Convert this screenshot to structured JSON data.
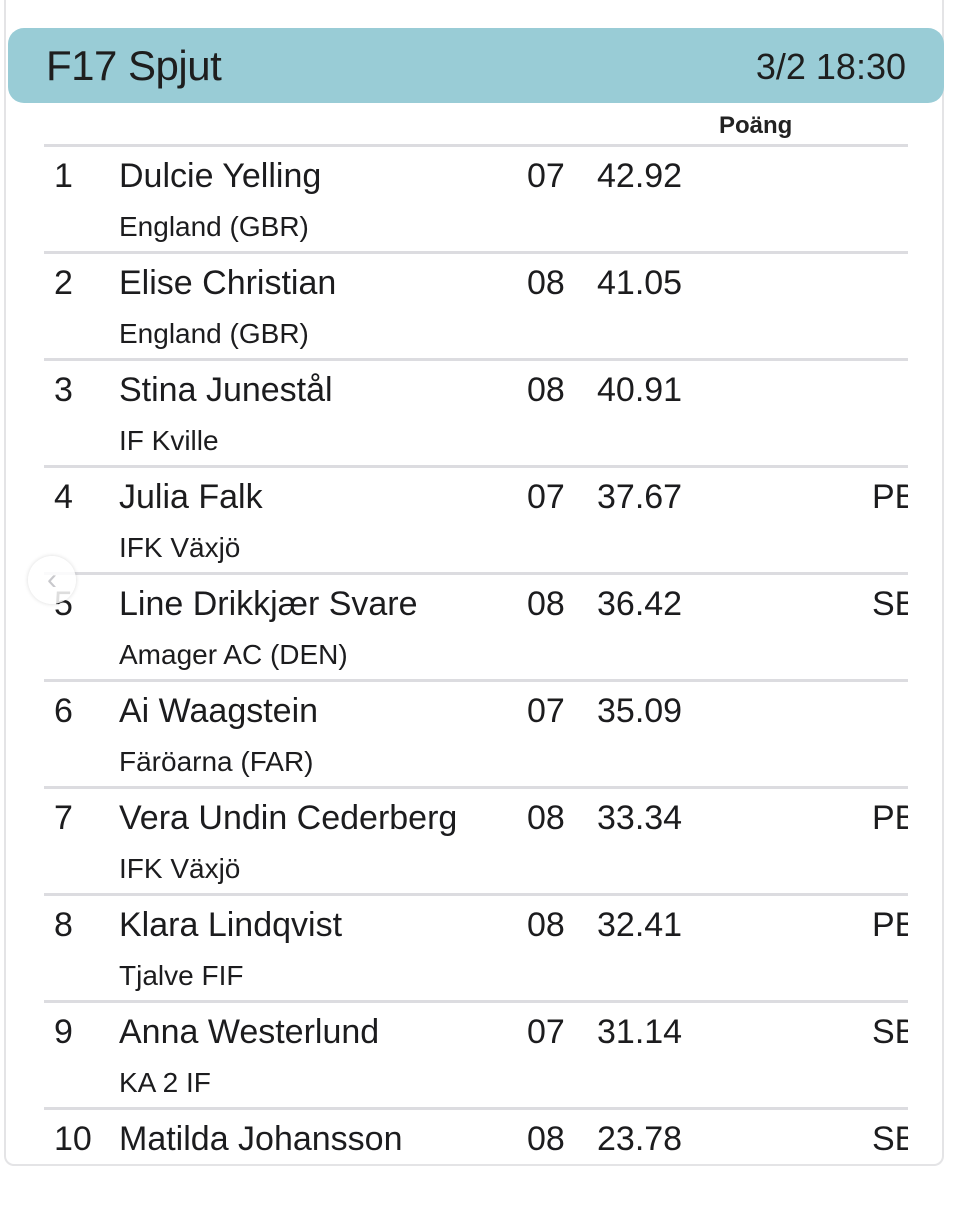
{
  "header": {
    "title": "F17 Spjut",
    "datetime": "3/2 18:30",
    "color": "#99ccd6"
  },
  "columns": {
    "points": "Poäng"
  },
  "rows": [
    {
      "rank": "1",
      "name": "Dulcie Yelling",
      "club": "England (GBR)",
      "year": "07",
      "result": "42.92",
      "note": ""
    },
    {
      "rank": "2",
      "name": "Elise Christian",
      "club": "England (GBR)",
      "year": "08",
      "result": "41.05",
      "note": ""
    },
    {
      "rank": "3",
      "name": "Stina Junestål",
      "club": "IF Kville",
      "year": "08",
      "result": "40.91",
      "note": ""
    },
    {
      "rank": "4",
      "name": "Julia Falk",
      "club": "IFK Växjö",
      "year": "07",
      "result": "37.67",
      "note": "PB"
    },
    {
      "rank": "5",
      "name": "Line Drikkjær Svare",
      "club": "Amager AC (DEN)",
      "year": "08",
      "result": "36.42",
      "note": "SB"
    },
    {
      "rank": "6",
      "name": "Ai Waagstein",
      "club": "Färöarna (FAR)",
      "year": "07",
      "result": "35.09",
      "note": ""
    },
    {
      "rank": "7",
      "name": "Vera Undin Cederberg",
      "club": "IFK Växjö",
      "year": "08",
      "result": "33.34",
      "note": "PB"
    },
    {
      "rank": "8",
      "name": "Klara Lindqvist",
      "club": "Tjalve FIF",
      "year": "08",
      "result": "32.41",
      "note": "PB"
    },
    {
      "rank": "9",
      "name": "Anna Westerlund",
      "club": "KA 2 IF",
      "year": "07",
      "result": "31.14",
      "note": "SB"
    },
    {
      "rank": "10",
      "name": "Matilda Johansson",
      "club": "",
      "year": "08",
      "result": "23.78",
      "note": "SB"
    }
  ],
  "icons": {
    "back": "chevron-left-icon"
  }
}
